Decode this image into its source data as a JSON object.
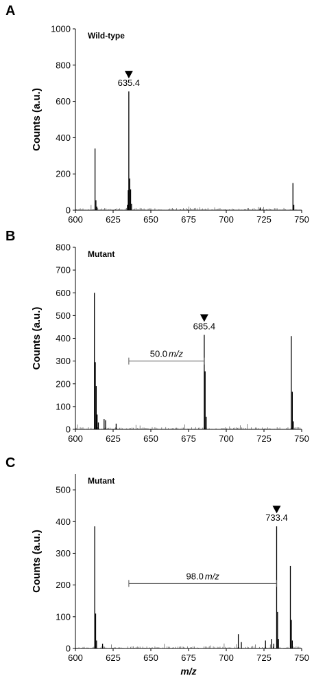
{
  "chart_data": [
    {
      "type": "bar",
      "panel": "A",
      "sample_label": "Wild-type",
      "ylabel": "Counts (a.u.)",
      "xlabel": "",
      "xlim": [
        600,
        750
      ],
      "ylim": [
        0,
        1000
      ],
      "xticks": [
        600,
        625,
        650,
        675,
        700,
        725,
        750
      ],
      "yticks": [
        0,
        200,
        400,
        600,
        800,
        1000
      ],
      "peak_label": "635.4",
      "peak_x": 635.4,
      "peak_y": 655,
      "difference": null,
      "peaks": [
        {
          "x": 613.0,
          "y": 340
        },
        {
          "x": 613.6,
          "y": 55
        },
        {
          "x": 614.2,
          "y": 20
        },
        {
          "x": 634.5,
          "y": 30
        },
        {
          "x": 635.0,
          "y": 110
        },
        {
          "x": 635.4,
          "y": 655
        },
        {
          "x": 636.0,
          "y": 175
        },
        {
          "x": 636.6,
          "y": 115
        },
        {
          "x": 637.2,
          "y": 35
        },
        {
          "x": 722.5,
          "y": 15
        },
        {
          "x": 744.2,
          "y": 150
        },
        {
          "x": 744.8,
          "y": 30
        }
      ]
    },
    {
      "type": "bar",
      "panel": "B",
      "sample_label": "Mutant",
      "ylabel": "Counts (a.u.)",
      "xlabel": "",
      "xlim": [
        600,
        750
      ],
      "ylim": [
        0,
        800
      ],
      "xticks": [
        600,
        625,
        650,
        675,
        700,
        725,
        750
      ],
      "yticks": [
        0,
        100,
        200,
        300,
        400,
        500,
        600,
        700,
        800
      ],
      "peak_label": "685.4",
      "peak_x": 685.4,
      "peak_y": 415,
      "difference": {
        "value": "50.0",
        "unit": "m/z",
        "x1": 635.4,
        "x2": 685.4,
        "y": 300
      },
      "peaks": [
        {
          "x": 612.6,
          "y": 600
        },
        {
          "x": 613.2,
          "y": 295
        },
        {
          "x": 613.8,
          "y": 190
        },
        {
          "x": 614.4,
          "y": 65
        },
        {
          "x": 615.2,
          "y": 30
        },
        {
          "x": 619.0,
          "y": 45
        },
        {
          "x": 620.0,
          "y": 40
        },
        {
          "x": 627.0,
          "y": 25
        },
        {
          "x": 685.4,
          "y": 415
        },
        {
          "x": 686.0,
          "y": 255
        },
        {
          "x": 686.7,
          "y": 55
        },
        {
          "x": 743.1,
          "y": 410
        },
        {
          "x": 743.8,
          "y": 165
        },
        {
          "x": 744.5,
          "y": 35
        }
      ]
    },
    {
      "type": "bar",
      "panel": "C",
      "sample_label": "Mutant",
      "ylabel": "Counts (a.u.)",
      "xlabel": "m/z",
      "xlim": [
        600,
        750
      ],
      "ylim": [
        0,
        550
      ],
      "xticks": [
        600,
        625,
        650,
        675,
        700,
        725,
        750
      ],
      "yticks": [
        0,
        100,
        200,
        300,
        400,
        500
      ],
      "peak_label": "733.4",
      "peak_x": 733.4,
      "peak_y": 385,
      "difference": {
        "value": "98.0",
        "unit": "m/z",
        "x1": 635.4,
        "x2": 733.4,
        "y": 205
      },
      "peaks": [
        {
          "x": 612.8,
          "y": 385
        },
        {
          "x": 613.4,
          "y": 110
        },
        {
          "x": 614.0,
          "y": 25
        },
        {
          "x": 618.0,
          "y": 15
        },
        {
          "x": 708.0,
          "y": 45
        },
        {
          "x": 710.0,
          "y": 20
        },
        {
          "x": 726.0,
          "y": 25
        },
        {
          "x": 730.0,
          "y": 30
        },
        {
          "x": 731.5,
          "y": 15
        },
        {
          "x": 733.4,
          "y": 385
        },
        {
          "x": 734.0,
          "y": 115
        },
        {
          "x": 734.6,
          "y": 30
        },
        {
          "x": 742.5,
          "y": 260
        },
        {
          "x": 743.2,
          "y": 90
        },
        {
          "x": 743.8,
          "y": 25
        }
      ]
    }
  ]
}
